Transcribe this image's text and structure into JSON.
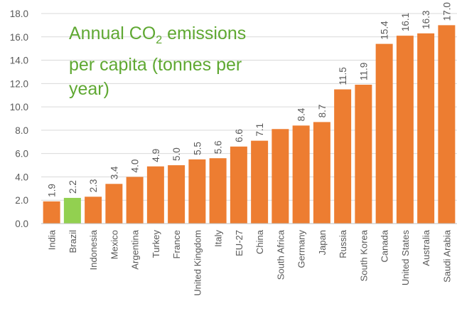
{
  "chart_data": {
    "type": "bar",
    "title_parts": {
      "pre": "Annual CO",
      "sub": "2",
      "post": " emissions per capita (tonnes per year)"
    },
    "title": "Annual CO2 emissions per capita (tonnes per year)",
    "xlabel": "",
    "ylabel": "",
    "ylim": [
      0,
      18
    ],
    "yticks": [
      "0.0",
      "2.0",
      "4.0",
      "6.0",
      "8.0",
      "10.0",
      "12.0",
      "14.0",
      "16.0",
      "18.0"
    ],
    "grid": true,
    "categories": [
      "India",
      "Brazil",
      "Indonesia",
      "Mexico",
      "Argentina",
      "Turkey",
      "France",
      "United Kingdom",
      "Italy",
      "EU-27",
      "China",
      "South Africa",
      "Germany",
      "Japan",
      "Russia",
      "South Korea",
      "Canada",
      "United States",
      "Australia",
      "Saudi Arabia"
    ],
    "values": [
      1.9,
      2.2,
      2.3,
      3.4,
      4.0,
      4.9,
      5.0,
      5.5,
      5.6,
      6.6,
      7.1,
      8.1,
      8.4,
      8.7,
      11.5,
      11.9,
      15.4,
      16.1,
      16.3,
      17.0
    ],
    "data_labels": [
      "1.9",
      "2.2",
      "2.3",
      "3.4",
      "4.0",
      "4.9",
      "5.0",
      "5.5",
      "5.6",
      "6.6",
      "7.1",
      "",
      "8.4",
      "8.7",
      "11.5",
      "11.9",
      "15.4",
      "16.1",
      "16.3",
      "17.0"
    ],
    "highlight_index": 1,
    "colors": {
      "bar": "#ed7d31",
      "highlight": "#92d050",
      "grid": "#d9d9d9",
      "axis": "#bfbfbf",
      "title": "#5fa832",
      "text": "#595959"
    }
  }
}
